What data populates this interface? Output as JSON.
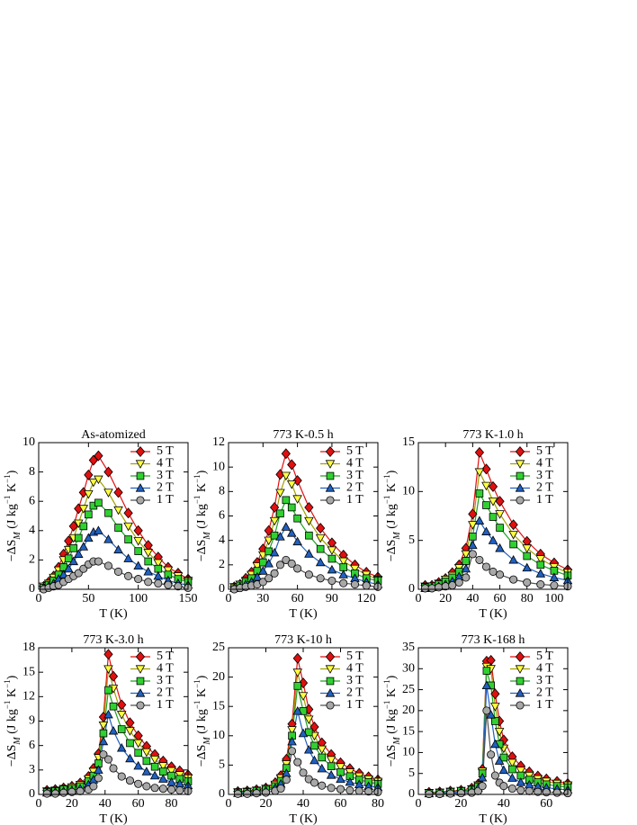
{
  "chart_data": [
    {
      "type": "line",
      "title": "As-atomized",
      "xlabel": "T (K)",
      "ylabel": [
        "−ΔS",
        "M",
        " (J kg",
        "−1",
        " K",
        "−1",
        ")"
      ],
      "x": [
        5,
        10,
        15,
        20,
        25,
        30,
        35,
        40,
        45,
        50,
        55,
        60,
        70,
        80,
        90,
        100,
        110,
        120,
        130,
        140,
        150
      ],
      "xlim": [
        0,
        150
      ],
      "xticks": [
        0,
        50,
        100,
        150
      ],
      "ylim": [
        0,
        10
      ],
      "yticks": [
        0,
        2,
        4,
        6,
        8,
        10
      ],
      "legend": "upper right",
      "series": [
        {
          "name": "5 T",
          "marker": "diamond",
          "color": "#e01010",
          "line_color": "#e01010",
          "values": [
            0.2,
            0.5,
            0.9,
            1.5,
            2.4,
            3.3,
            4.3,
            5.5,
            6.6,
            7.8,
            8.8,
            9.1,
            8.0,
            6.6,
            5.2,
            4.0,
            3.0,
            2.2,
            1.5,
            1.1,
            0.7
          ]
        },
        {
          "name": "4 T",
          "marker": "triangle-down",
          "color": "#ffff40",
          "line_color": "#a0a000",
          "values": [
            0.2,
            0.4,
            0.8,
            1.3,
            2.0,
            2.7,
            3.5,
            4.5,
            5.5,
            6.5,
            7.3,
            7.5,
            6.6,
            5.4,
            4.3,
            3.3,
            2.5,
            1.8,
            1.3,
            0.9,
            0.6
          ]
        },
        {
          "name": "3 T",
          "marker": "square",
          "color": "#30d030",
          "line_color": "#20a020",
          "values": [
            0.1,
            0.3,
            0.6,
            1.0,
            1.5,
            2.1,
            2.8,
            3.5,
            4.3,
            5.1,
            5.7,
            5.9,
            5.2,
            4.2,
            3.4,
            2.6,
            1.9,
            1.4,
            1.0,
            0.7,
            0.5
          ]
        },
        {
          "name": "2 T",
          "marker": "triangle-up",
          "color": "#2060c0",
          "line_color": "#2060c0",
          "values": [
            0.1,
            0.2,
            0.4,
            0.7,
            1.0,
            1.4,
            1.9,
            2.4,
            2.9,
            3.5,
            3.9,
            4.0,
            3.4,
            2.7,
            2.1,
            1.6,
            1.2,
            0.9,
            0.6,
            0.4,
            0.3
          ]
        },
        {
          "name": "1 T",
          "marker": "circle",
          "color": "#a8a8a8",
          "line_color": "#505050",
          "values": [
            0.0,
            0.1,
            0.2,
            0.3,
            0.5,
            0.7,
            0.9,
            1.1,
            1.4,
            1.7,
            1.9,
            1.9,
            1.6,
            1.2,
            0.9,
            0.7,
            0.5,
            0.4,
            0.3,
            0.2,
            0.1
          ]
        }
      ]
    },
    {
      "type": "line",
      "title": "773 K-0.5 h",
      "xlabel": "T (K)",
      "ylabel": [
        "−ΔS",
        "M",
        " (J kg",
        "−1",
        " K",
        "−1",
        ")"
      ],
      "x": [
        5,
        10,
        15,
        20,
        25,
        30,
        35,
        40,
        45,
        50,
        55,
        60,
        70,
        80,
        90,
        100,
        110,
        120,
        130
      ],
      "xlim": [
        0,
        130
      ],
      "xticks": [
        0,
        30,
        60,
        90,
        120
      ],
      "ylim": [
        0,
        12
      ],
      "yticks": [
        0,
        2,
        4,
        6,
        8,
        10,
        12
      ],
      "legend": "upper right",
      "series": [
        {
          "name": "5 T",
          "marker": "diamond",
          "color": "#e01010",
          "line_color": "#e01010",
          "values": [
            0.2,
            0.4,
            0.9,
            1.4,
            2.2,
            3.3,
            4.8,
            6.7,
            9.4,
            11.1,
            10.2,
            8.9,
            6.7,
            5.0,
            3.8,
            2.8,
            2.0,
            1.4,
            1.0
          ]
        },
        {
          "name": "4 T",
          "marker": "triangle-down",
          "color": "#ffff40",
          "line_color": "#a0a000",
          "values": [
            0.2,
            0.4,
            0.7,
            1.2,
            1.9,
            2.8,
            4.0,
            5.6,
            7.9,
            9.3,
            8.6,
            7.4,
            5.6,
            4.2,
            3.2,
            2.3,
            1.7,
            1.2,
            0.8
          ]
        },
        {
          "name": "3 T",
          "marker": "square",
          "color": "#30d030",
          "line_color": "#20a020",
          "values": [
            0.1,
            0.3,
            0.6,
            0.9,
            1.5,
            2.2,
            3.1,
            4.4,
            6.2,
            7.3,
            6.7,
            5.8,
            4.4,
            3.3,
            2.5,
            1.8,
            1.3,
            0.9,
            0.7
          ]
        },
        {
          "name": "2 T",
          "marker": "triangle-up",
          "color": "#2060c0",
          "line_color": "#2060c0",
          "values": [
            0.1,
            0.2,
            0.4,
            0.6,
            1.0,
            1.5,
            2.1,
            3.0,
            4.3,
            5.1,
            4.6,
            3.9,
            2.9,
            2.2,
            1.6,
            1.2,
            0.9,
            0.6,
            0.4
          ]
        },
        {
          "name": "1 T",
          "marker": "circle",
          "color": "#a8a8a8",
          "line_color": "#505050",
          "values": [
            0.0,
            0.1,
            0.2,
            0.3,
            0.4,
            0.6,
            0.9,
            1.3,
            2.0,
            2.4,
            2.1,
            1.7,
            1.2,
            0.9,
            0.7,
            0.5,
            0.4,
            0.3,
            0.2
          ]
        }
      ]
    },
    {
      "type": "line",
      "title": "773 K-1.0 h",
      "xlabel": "T (K)",
      "ylabel": [
        "−ΔS",
        "M",
        " (J kg",
        "−1",
        " K",
        "−1",
        ")"
      ],
      "x": [
        5,
        10,
        15,
        20,
        25,
        30,
        35,
        40,
        45,
        50,
        55,
        60,
        70,
        80,
        90,
        100,
        110
      ],
      "xlim": [
        0,
        110
      ],
      "xticks": [
        0,
        20,
        40,
        60,
        80,
        100
      ],
      "ylim": [
        0,
        15
      ],
      "yticks": [
        0,
        5,
        10,
        15
      ],
      "legend": "upper right",
      "series": [
        {
          "name": "5 T",
          "marker": "diamond",
          "color": "#e01010",
          "line_color": "#e01010",
          "values": [
            0.4,
            0.4,
            0.7,
            1.1,
            1.7,
            2.5,
            4.2,
            7.7,
            14.0,
            12.3,
            10.5,
            9.0,
            6.6,
            4.9,
            3.6,
            2.7,
            2.0
          ]
        },
        {
          "name": "4 T",
          "marker": "triangle-down",
          "color": "#ffff40",
          "line_color": "#a0a000",
          "values": [
            0.3,
            0.3,
            0.6,
            1.0,
            1.4,
            2.2,
            3.6,
            6.6,
            12.0,
            10.6,
            9.0,
            7.7,
            5.6,
            4.2,
            3.1,
            2.3,
            1.7
          ]
        },
        {
          "name": "3 T",
          "marker": "square",
          "color": "#30d030",
          "line_color": "#20a020",
          "values": [
            0.2,
            0.3,
            0.5,
            0.8,
            1.2,
            1.8,
            2.9,
            5.4,
            9.8,
            8.6,
            7.4,
            6.3,
            4.6,
            3.4,
            2.5,
            1.9,
            1.4
          ]
        },
        {
          "name": "2 T",
          "marker": "triangle-up",
          "color": "#2060c0",
          "line_color": "#2060c0",
          "values": [
            0.1,
            0.2,
            0.3,
            0.5,
            0.8,
            1.3,
            2.1,
            4.5,
            7.0,
            5.9,
            5.0,
            4.2,
            3.0,
            2.2,
            1.6,
            1.2,
            0.9
          ]
        },
        {
          "name": "1 T",
          "marker": "circle",
          "color": "#a8a8a8",
          "line_color": "#505050",
          "values": [
            0.1,
            0.1,
            0.2,
            0.3,
            0.4,
            0.7,
            1.2,
            3.6,
            3.0,
            2.3,
            1.8,
            1.5,
            1.0,
            0.7,
            0.5,
            0.4,
            0.3
          ]
        }
      ]
    },
    {
      "type": "line",
      "title": "773 K-3.0 h",
      "xlabel": "T (K)",
      "ylabel": [
        "−ΔS",
        "M",
        " (J kg",
        "−1",
        " K",
        "−1",
        ")"
      ],
      "x": [
        5,
        10,
        15,
        20,
        25,
        30,
        33,
        36,
        39,
        42,
        45,
        50,
        55,
        60,
        65,
        70,
        75,
        80,
        85,
        90
      ],
      "xlim": [
        0,
        90
      ],
      "xticks": [
        0,
        20,
        40,
        60,
        80
      ],
      "ylim": [
        0,
        18
      ],
      "yticks": [
        0,
        3,
        6,
        9,
        12,
        15,
        18
      ],
      "legend": "upper right",
      "series": [
        {
          "name": "5 T",
          "marker": "diamond",
          "color": "#e01010",
          "line_color": "#e01010",
          "values": [
            0.5,
            0.6,
            0.8,
            1.0,
            1.4,
            2.2,
            3.2,
            5.0,
            9.5,
            17.2,
            14.5,
            11.0,
            8.8,
            7.2,
            5.9,
            4.9,
            4.1,
            3.4,
            2.9,
            2.4
          ]
        },
        {
          "name": "4 T",
          "marker": "triangle-down",
          "color": "#ffff40",
          "line_color": "#a0a000",
          "values": [
            0.4,
            0.5,
            0.7,
            0.9,
            1.2,
            1.9,
            2.8,
            4.5,
            8.5,
            15.4,
            13.0,
            9.8,
            7.8,
            6.3,
            5.2,
            4.3,
            3.5,
            2.9,
            2.4,
            2.0
          ]
        },
        {
          "name": "3 T",
          "marker": "square",
          "color": "#30d030",
          "line_color": "#20a020",
          "values": [
            0.3,
            0.4,
            0.6,
            0.7,
            1.0,
            1.6,
            2.3,
            3.8,
            7.5,
            12.8,
            10.8,
            8.0,
            6.3,
            5.1,
            4.1,
            3.4,
            2.8,
            2.3,
            1.9,
            1.6
          ]
        },
        {
          "name": "2 T",
          "marker": "triangle-up",
          "color": "#2060c0",
          "line_color": "#2060c0",
          "values": [
            0.2,
            0.3,
            0.4,
            0.5,
            0.7,
            1.2,
            1.8,
            3.0,
            6.5,
            9.8,
            7.8,
            5.7,
            4.4,
            3.5,
            2.8,
            2.3,
            1.9,
            1.5,
            1.3,
            1.1
          ]
        },
        {
          "name": "1 T",
          "marker": "circle",
          "color": "#a8a8a8",
          "line_color": "#505050",
          "values": [
            0.1,
            0.1,
            0.2,
            0.3,
            0.4,
            0.6,
            1.0,
            2.0,
            4.9,
            4.3,
            3.2,
            2.2,
            1.7,
            1.3,
            1.0,
            0.8,
            0.7,
            0.6,
            0.5,
            0.4
          ]
        }
      ]
    },
    {
      "type": "line",
      "title": "773 K-10 h",
      "xlabel": "T (K)",
      "ylabel": [
        "−ΔS",
        "M",
        " (J kg",
        "−1",
        " K",
        "−1",
        ")"
      ],
      "x": [
        5,
        10,
        15,
        20,
        25,
        28,
        31,
        34,
        37,
        40,
        43,
        46,
        50,
        55,
        60,
        65,
        70,
        75,
        80
      ],
      "xlim": [
        0,
        80
      ],
      "xticks": [
        0,
        20,
        40,
        60,
        80
      ],
      "ylim": [
        0,
        25
      ],
      "yticks": [
        0,
        5,
        10,
        15,
        20,
        25
      ],
      "legend": "upper right",
      "series": [
        {
          "name": "5 T",
          "marker": "diamond",
          "color": "#e01010",
          "line_color": "#e01010",
          "values": [
            0.5,
            0.6,
            0.8,
            1.1,
            2.0,
            3.2,
            6.0,
            12.0,
            23.2,
            19.0,
            14.5,
            11.5,
            8.8,
            6.8,
            5.4,
            4.4,
            3.6,
            3.0,
            2.5
          ]
        },
        {
          "name": "4 T",
          "marker": "triangle-down",
          "color": "#ffff40",
          "line_color": "#a0a000",
          "values": [
            0.4,
            0.5,
            0.7,
            1.0,
            1.7,
            2.8,
            5.2,
            11.0,
            20.8,
            16.8,
            12.8,
            10.0,
            7.7,
            5.9,
            4.7,
            3.8,
            3.1,
            2.6,
            2.2
          ]
        },
        {
          "name": "3 T",
          "marker": "square",
          "color": "#30d030",
          "line_color": "#20a020",
          "values": [
            0.3,
            0.4,
            0.6,
            0.8,
            1.4,
            2.3,
            4.5,
            10.0,
            18.5,
            14.2,
            10.6,
            8.3,
            6.3,
            4.8,
            3.8,
            3.1,
            2.5,
            2.1,
            1.8
          ]
        },
        {
          "name": "2 T",
          "marker": "triangle-up",
          "color": "#2060c0",
          "line_color": "#2060c0",
          "values": [
            0.2,
            0.3,
            0.4,
            0.6,
            1.1,
            1.8,
            3.6,
            9.0,
            14.2,
            10.4,
            7.6,
            5.8,
            4.4,
            3.3,
            2.6,
            2.1,
            1.7,
            1.4,
            1.2
          ]
        },
        {
          "name": "1 T",
          "marker": "circle",
          "color": "#a8a8a8",
          "line_color": "#505050",
          "values": [
            0.1,
            0.1,
            0.2,
            0.3,
            0.6,
            1.0,
            2.5,
            7.4,
            5.5,
            3.7,
            2.6,
            2.0,
            1.5,
            1.1,
            0.9,
            0.7,
            0.6,
            0.5,
            0.4
          ]
        }
      ]
    },
    {
      "type": "line",
      "title": "773 K-168 h",
      "xlabel": "T (K)",
      "ylabel": [
        "−ΔS",
        "M",
        " (J kg",
        "−1",
        " K",
        "−1",
        ")"
      ],
      "x": [
        5,
        10,
        15,
        20,
        25,
        28,
        30,
        32,
        34,
        36,
        38,
        40,
        44,
        48,
        52,
        56,
        60,
        65,
        70
      ],
      "xlim": [
        0,
        70
      ],
      "xticks": [
        0,
        20,
        40,
        60
      ],
      "ylim": [
        0,
        35
      ],
      "yticks": [
        0,
        5,
        10,
        15,
        20,
        25,
        30,
        35
      ],
      "legend": "upper right",
      "series": [
        {
          "name": "5 T",
          "marker": "diamond",
          "color": "#e01010",
          "line_color": "#e01010",
          "values": [
            0.5,
            0.6,
            0.8,
            1.0,
            1.5,
            2.5,
            6.0,
            31.8,
            32.0,
            24.0,
            17.5,
            13.0,
            9.0,
            6.8,
            5.4,
            4.4,
            3.7,
            3.1,
            2.6
          ]
        },
        {
          "name": "4 T",
          "marker": "triangle-down",
          "color": "#ffff40",
          "line_color": "#a0a000",
          "values": [
            0.4,
            0.5,
            0.7,
            0.9,
            1.3,
            2.2,
            5.5,
            30.5,
            30.0,
            21.0,
            15.0,
            11.0,
            7.6,
            5.7,
            4.5,
            3.7,
            3.1,
            2.6,
            2.2
          ]
        },
        {
          "name": "3 T",
          "marker": "square",
          "color": "#30d030",
          "line_color": "#20a020",
          "values": [
            0.3,
            0.4,
            0.6,
            0.8,
            1.1,
            1.9,
            5.0,
            29.5,
            26.0,
            17.5,
            12.0,
            8.8,
            6.0,
            4.5,
            3.5,
            2.9,
            2.4,
            2.0,
            1.7
          ]
        },
        {
          "name": "2 T",
          "marker": "triangle-up",
          "color": "#2060c0",
          "line_color": "#2060c0",
          "values": [
            0.2,
            0.3,
            0.4,
            0.6,
            0.8,
            1.5,
            4.0,
            26.0,
            19.0,
            12.0,
            8.0,
            5.8,
            3.9,
            2.9,
            2.3,
            1.9,
            1.6,
            1.3,
            1.1
          ]
        },
        {
          "name": "1 T",
          "marker": "circle",
          "color": "#a8a8a8",
          "line_color": "#505050",
          "values": [
            0.1,
            0.1,
            0.2,
            0.3,
            0.4,
            0.8,
            2.0,
            20.0,
            9.5,
            4.5,
            2.8,
            2.0,
            1.4,
            1.0,
            0.8,
            0.6,
            0.5,
            0.4,
            0.3
          ]
        }
      ]
    }
  ]
}
